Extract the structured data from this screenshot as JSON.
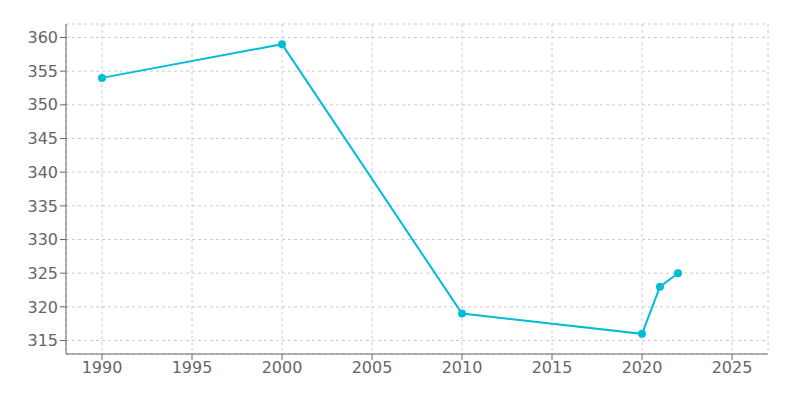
{
  "chart_data": {
    "type": "line",
    "x": [
      1990,
      2000,
      2010,
      2020,
      2021,
      2022
    ],
    "values": [
      354,
      359,
      319,
      316,
      323,
      325
    ],
    "color": "#00bcd4",
    "marker": "circle",
    "xlim": [
      1988,
      2027
    ],
    "ylim": [
      313,
      362
    ],
    "xticks": [
      1990,
      1995,
      2000,
      2005,
      2010,
      2015,
      2020,
      2025
    ],
    "yticks": [
      315,
      320,
      325,
      330,
      335,
      340,
      345,
      350,
      355,
      360
    ],
    "grid": true
  }
}
